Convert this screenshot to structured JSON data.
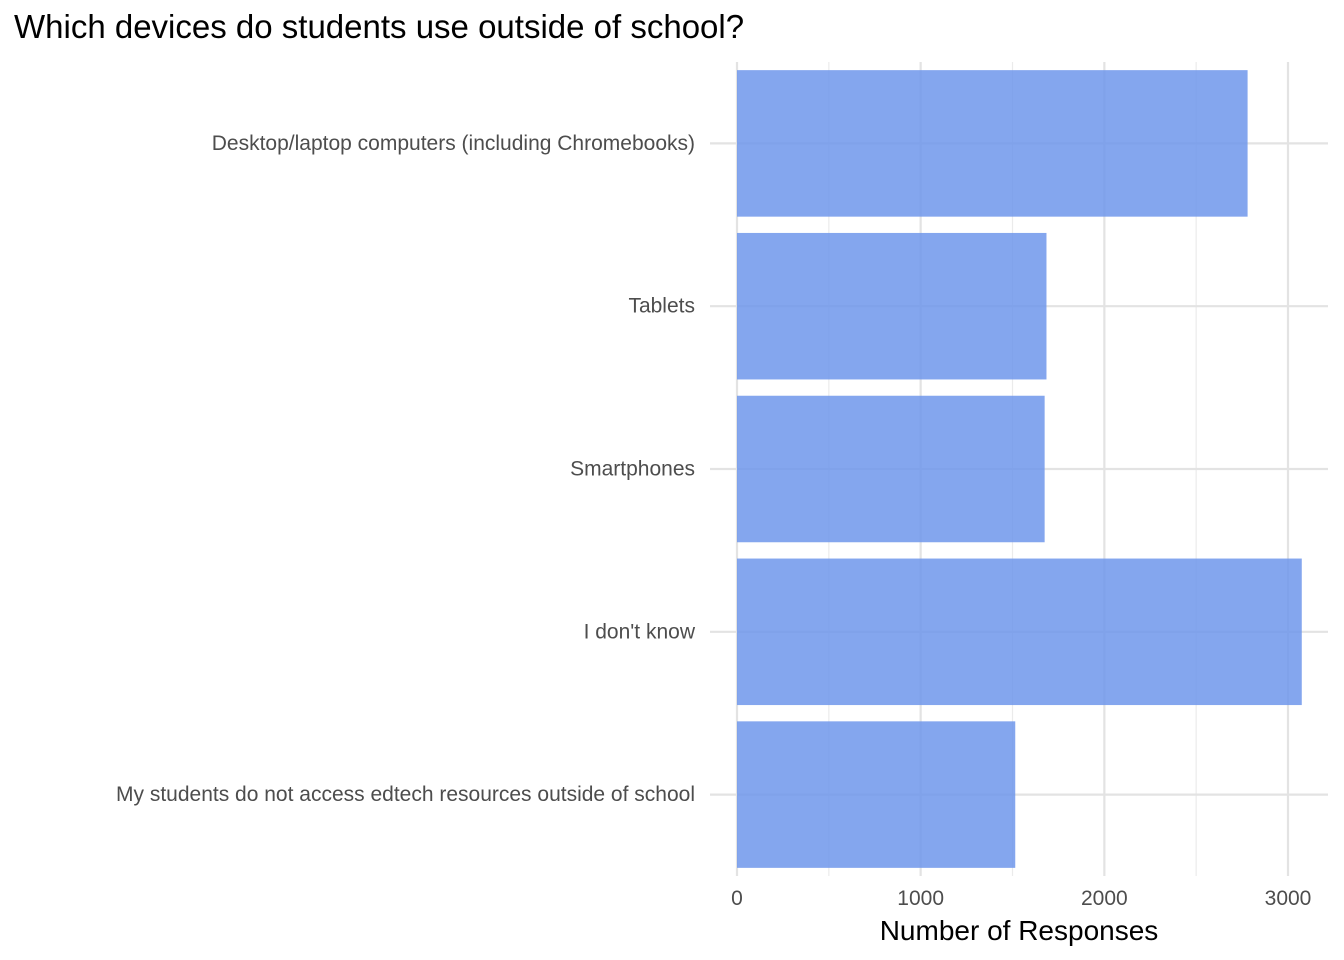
{
  "chart_data": {
    "type": "bar",
    "orientation": "horizontal",
    "title": "Which devices do students use outside of school?",
    "xlabel": "Number of Responses",
    "ylabel": "",
    "categories": [
      "Desktop/laptop computers (including Chromebooks)",
      "Tablets",
      "Smartphones",
      "I don't know",
      "My students do not access edtech resources outside of school"
    ],
    "values": [
      2780,
      1685,
      1675,
      3075,
      1515
    ],
    "xlim": [
      0,
      3150
    ],
    "xticks": [
      0,
      1000,
      2000,
      3000
    ],
    "xtick_labels": [
      "0",
      "1000",
      "2000",
      "3000"
    ],
    "bar_color": "#6e96eb",
    "grid": true,
    "legend": "none"
  }
}
